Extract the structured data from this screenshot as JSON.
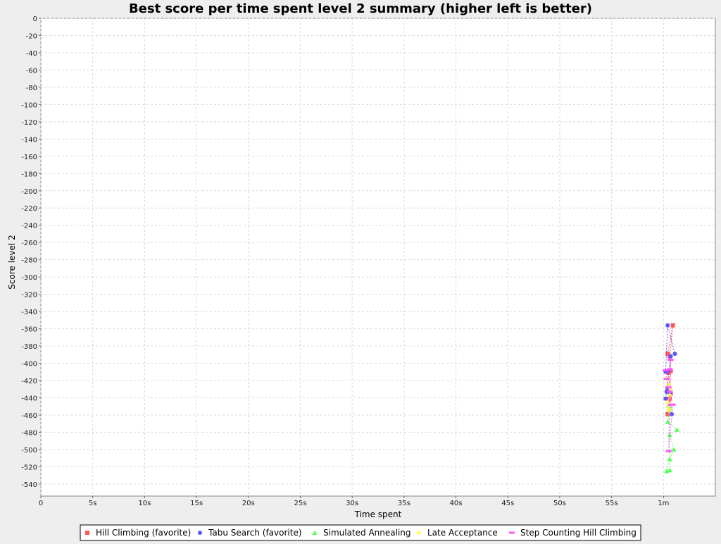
{
  "chart_data": {
    "type": "scatter",
    "title": "Best score per time spent level 2 summary (higher left is better)",
    "xlabel": "Time spent",
    "ylabel": "Score level 2",
    "xlim": [
      0,
      65
    ],
    "ylim": [
      -554,
      0
    ],
    "x_unit": "seconds",
    "x_ticks": [
      {
        "value": 0,
        "label": "0"
      },
      {
        "value": 5,
        "label": "5s"
      },
      {
        "value": 10,
        "label": "10s"
      },
      {
        "value": 15,
        "label": "15s"
      },
      {
        "value": 20,
        "label": "20s"
      },
      {
        "value": 25,
        "label": "25s"
      },
      {
        "value": 30,
        "label": "30s"
      },
      {
        "value": 35,
        "label": "35s"
      },
      {
        "value": 40,
        "label": "40s"
      },
      {
        "value": 45,
        "label": "45s"
      },
      {
        "value": 50,
        "label": "50s"
      },
      {
        "value": 55,
        "label": "55s"
      },
      {
        "value": 60,
        "label": "1m"
      }
    ],
    "y_ticks": [
      0,
      -20,
      -40,
      -60,
      -80,
      -100,
      -120,
      -140,
      -160,
      -180,
      -200,
      -220,
      -240,
      -260,
      -280,
      -300,
      -320,
      -340,
      -360,
      -380,
      -400,
      -420,
      -440,
      -460,
      -480,
      -500,
      -520,
      -540
    ],
    "grid": true,
    "legend_position": "bottom",
    "series": [
      {
        "name": "Hill Climbing (favorite)",
        "color": "#ff5555",
        "marker": "square",
        "points": [
          [
            60.4,
            -389
          ],
          [
            60.9,
            -356
          ],
          [
            60.6,
            -392
          ],
          [
            60.7,
            -409
          ],
          [
            60.5,
            -433
          ],
          [
            60.6,
            -441
          ],
          [
            60.4,
            -459
          ],
          [
            60.7,
            -435
          ],
          [
            60.6,
            -432
          ],
          [
            60.5,
            -411
          ],
          [
            60.4,
            -429
          ]
        ]
      },
      {
        "name": "Tabu Search (favorite)",
        "color": "#5555ff",
        "marker": "circle",
        "points": [
          [
            60.2,
            -410
          ],
          [
            60.4,
            -356
          ],
          [
            61.1,
            -389
          ],
          [
            60.7,
            -392
          ],
          [
            60.5,
            -408
          ],
          [
            60.3,
            -433
          ],
          [
            60.2,
            -441
          ],
          [
            60.8,
            -459
          ],
          [
            60.6,
            -435
          ],
          [
            60.4,
            -429
          ]
        ]
      },
      {
        "name": "Simulated Annealing",
        "color": "#55ff55",
        "marker": "triangle",
        "points": [
          [
            60.6,
            -452
          ],
          [
            60.4,
            -468
          ],
          [
            61.3,
            -477
          ],
          [
            60.6,
            -483
          ],
          [
            61.0,
            -500
          ],
          [
            60.6,
            -511
          ],
          [
            60.3,
            -525
          ],
          [
            60.6,
            -524
          ],
          [
            60.5,
            -449
          ]
        ]
      },
      {
        "name": "Late Acceptance",
        "color": "#ffff55",
        "marker": "diamond",
        "points": [
          [
            60.4,
            -418
          ],
          [
            60.5,
            -425
          ],
          [
            60.6,
            -437
          ],
          [
            60.4,
            -446
          ],
          [
            60.5,
            -452
          ],
          [
            60.6,
            -455
          ],
          [
            60.7,
            -430
          ]
        ]
      },
      {
        "name": "Step Counting Hill Climbing",
        "color": "#ff55ff",
        "marker": "hbar",
        "points": [
          [
            60.2,
            -408
          ],
          [
            60.3,
            -418
          ],
          [
            60.5,
            -428
          ],
          [
            60.6,
            -433
          ],
          [
            60.7,
            -448
          ],
          [
            60.9,
            -448
          ],
          [
            60.5,
            -502
          ],
          [
            60.7,
            -396
          ],
          [
            60.6,
            -407
          ]
        ]
      }
    ]
  }
}
